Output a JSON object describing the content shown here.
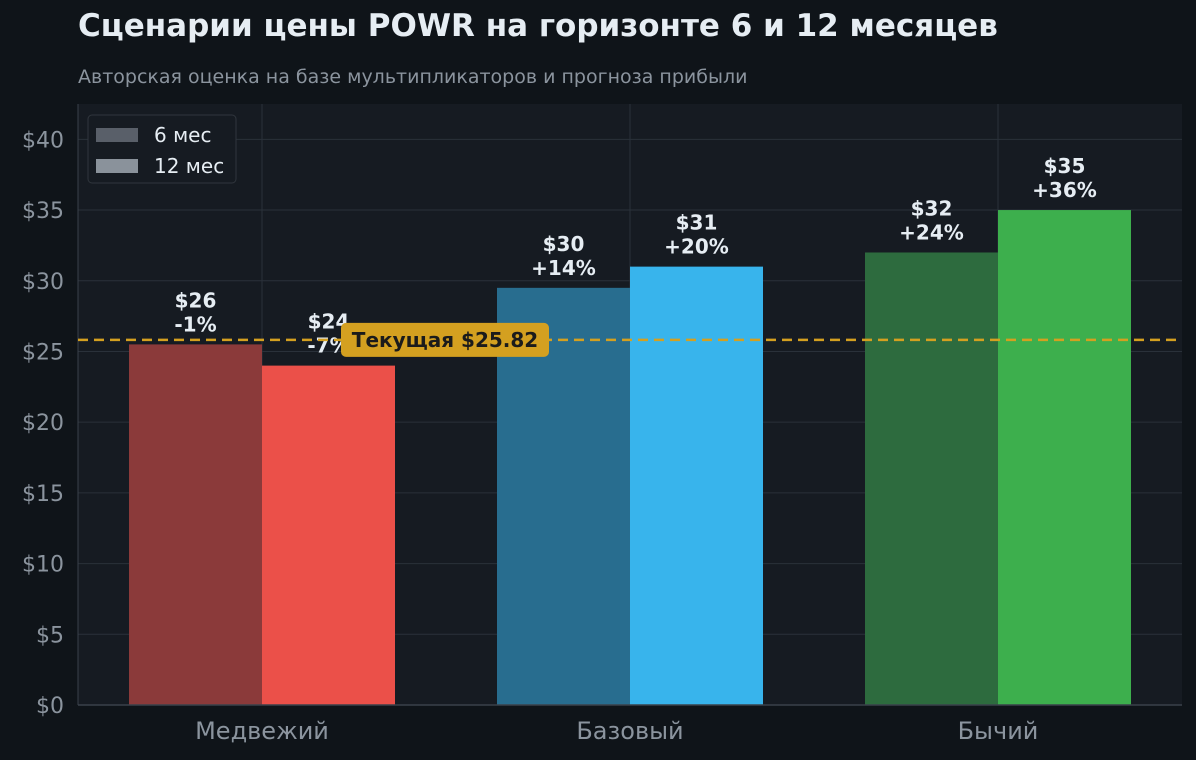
{
  "title": "Сценарии цены POWR на горизонте 6 и 12 месяцев",
  "subtitle": "Авторская оценка на базе мультипликаторов и прогноза прибыли",
  "colors": {
    "background": "#0f1419",
    "plot_background": "#161b22",
    "grid": "#2a313a",
    "reference_line": "#d4a020",
    "text": "#e6edf3",
    "muted_text": "#8b949e"
  },
  "chart_data": {
    "type": "bar",
    "categories": [
      "Медвежий",
      "Базовый",
      "Бычий"
    ],
    "series": [
      {
        "name": "6 мес",
        "values": [
          25.5,
          29.5,
          32
        ],
        "colors": [
          "#8b3a3a",
          "#286d8f",
          "#2d6b3e"
        ],
        "labels": [
          "$26\n-1%",
          "$30\n+14%",
          "$32\n+24%"
        ]
      },
      {
        "name": "12 мес",
        "values": [
          24,
          31,
          35
        ],
        "colors": [
          "#eb5049",
          "#38b4ec",
          "#3daf4d"
        ],
        "labels": [
          "$24\n-7%",
          "$31\n+20%",
          "$35\n+36%"
        ]
      }
    ],
    "reference_line": {
      "value": 25.82,
      "label": "Текущая $25.82"
    },
    "ylim": [
      0,
      42.5
    ],
    "yticks": [
      0,
      5,
      10,
      15,
      20,
      25,
      30,
      35,
      40
    ],
    "ytick_labels": [
      "$0",
      "$5",
      "$10",
      "$15",
      "$20",
      "$25",
      "$30",
      "$35",
      "$40"
    ],
    "legend": {
      "placement": "top-left",
      "entries": [
        {
          "label": "6 мес",
          "color": "#595f69"
        },
        {
          "label": "12 мес",
          "color": "#8a929b"
        }
      ]
    },
    "grid": true
  }
}
